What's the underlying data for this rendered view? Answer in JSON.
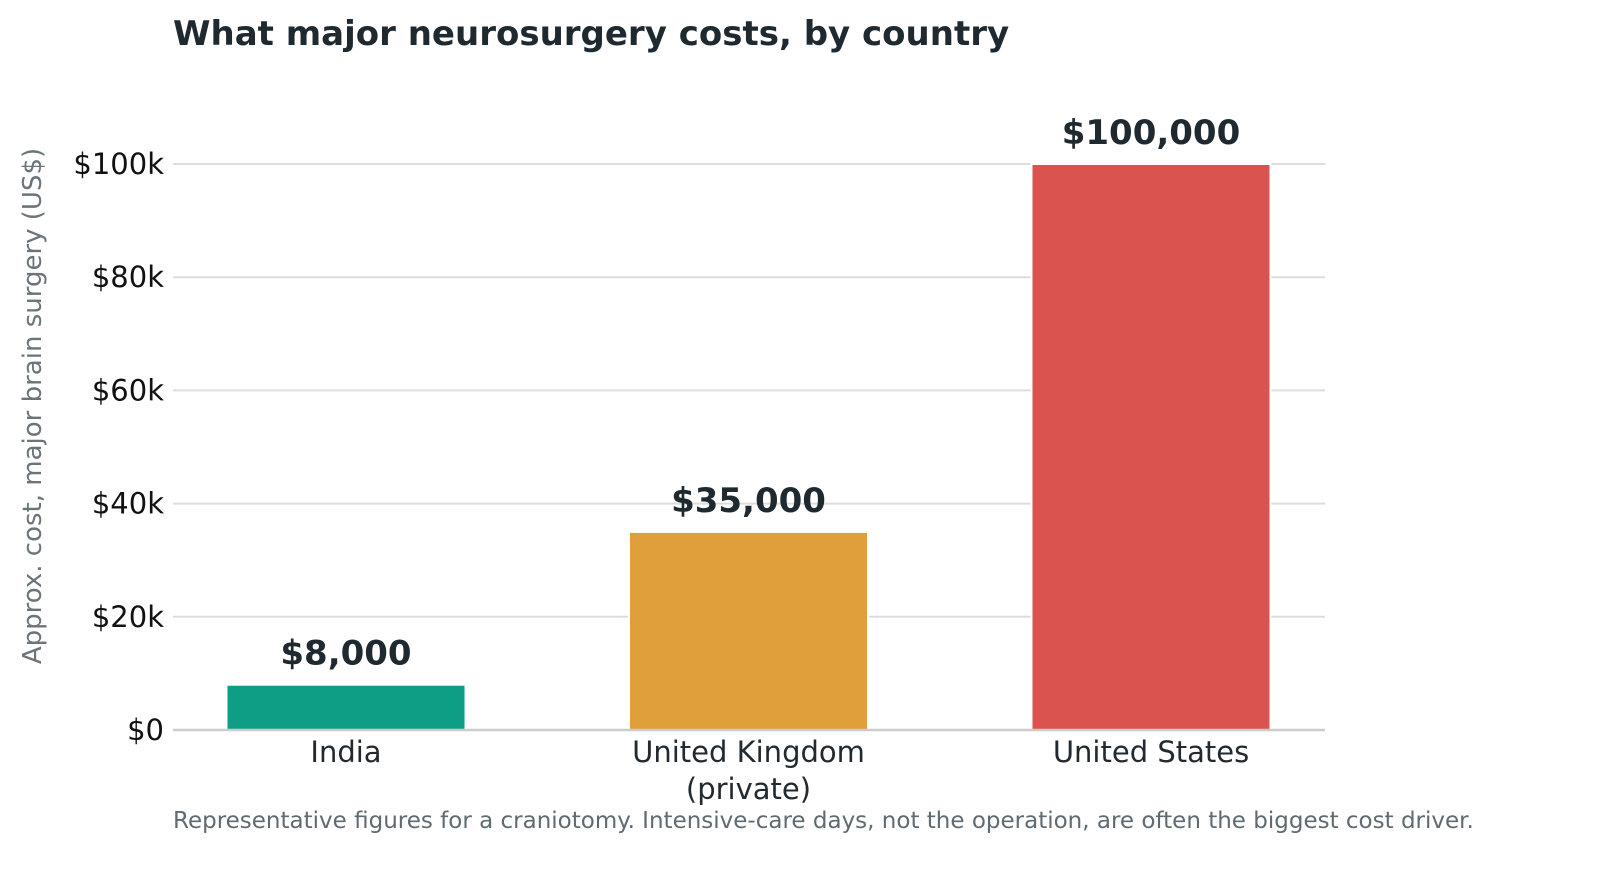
{
  "chart_data": {
    "type": "bar",
    "title": "What major neurosurgery costs, by country",
    "ylabel": "Approx. cost, major brain surgery (US$)",
    "xlabel": "",
    "categories": [
      [
        "India"
      ],
      [
        "United Kingdom",
        "(private)"
      ],
      [
        "United States"
      ]
    ],
    "values": [
      8000,
      35000,
      100000
    ],
    "value_labels": [
      "$8,000",
      "$35,000",
      "$100,000"
    ],
    "colors": [
      "#0e9e86",
      "#e09f3a",
      "#d9534f"
    ],
    "ylim": [
      0,
      100000
    ],
    "yticks": [
      0,
      20000,
      40000,
      60000,
      80000,
      100000
    ],
    "ytick_labels": [
      "$0",
      "$20k",
      "$40k",
      "$60k",
      "$80k",
      "$100k"
    ],
    "grid": true,
    "legend": "none"
  },
  "footnote": "Representative figures for a craniotomy. Intensive-care days, not the operation, are often the biggest cost driver."
}
